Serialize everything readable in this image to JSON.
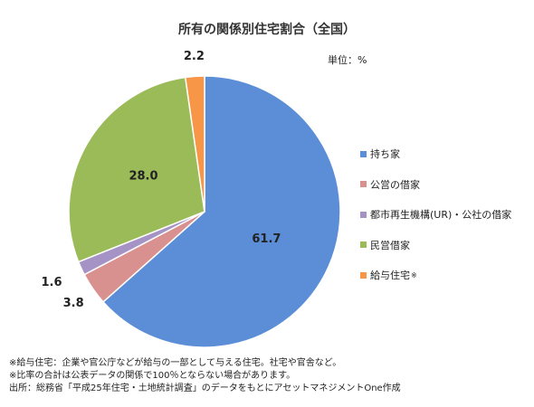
{
  "chart_data": {
    "type": "pie",
    "title": "所有の関係別住宅割合（全国）",
    "unit_label": "単位：%",
    "slices": [
      {
        "name": "持ち家",
        "value": 61.7,
        "label": "61.7",
        "color": "#5b8ed6"
      },
      {
        "name": "公営の借家",
        "value": 3.8,
        "label": "3.8",
        "color": "#d99190"
      },
      {
        "name": "都市再生機構(UR)・公社の借家",
        "value": 1.6,
        "label": "1.6",
        "color": "#a693c6"
      },
      {
        "name": "民営借家",
        "value": 28.0,
        "label": "28.0",
        "color": "#9bbb59"
      },
      {
        "name": "給与住宅",
        "value": 2.2,
        "label": "2.2",
        "color": "#f79646",
        "mark": "※"
      }
    ],
    "legend_position": "right"
  },
  "notes": [
    "※給与住宅：企業や官公庁などが給与の一部として与える住宅。社宅や官舎など。",
    "※比率の合計は公表データの関係で100％とならない場合があります。",
    "出所：総務省「平成25年住宅・土地統計調査」のデータをもとにアセットマネジメントOne作成"
  ]
}
